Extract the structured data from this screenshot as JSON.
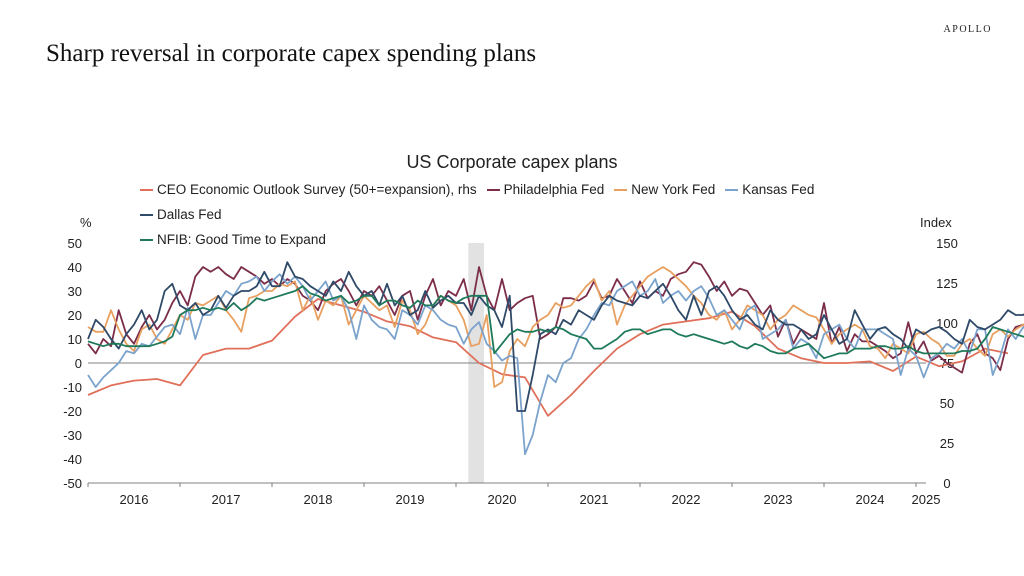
{
  "brand": "APOLLO",
  "page_title": "Sharp reversal in corporate capex spending plans",
  "chart_data": {
    "type": "line",
    "title": "US Corporate capex plans",
    "left_axis": {
      "label": "%",
      "ylim": [
        -50,
        50
      ],
      "ticks": [
        50,
        40,
        30,
        20,
        10,
        0,
        -10,
        -20,
        -30,
        -40,
        -50
      ]
    },
    "right_axis": {
      "label": "Index",
      "ylim": [
        0,
        150
      ],
      "ticks": [
        150,
        125,
        100,
        75,
        50,
        25,
        0
      ]
    },
    "x_axis": {
      "ticks": [
        "2016",
        "2017",
        "2018",
        "2019",
        "2020",
        "2021",
        "2022",
        "2023",
        "2024",
        "2025"
      ],
      "start": "2016-01",
      "end": "2025-03"
    },
    "recession_band": {
      "from": "2020-03",
      "to": "2020-04"
    },
    "zero_line": 0,
    "legend_placement": "top",
    "series": [
      {
        "name": "CEO Economic Outlook Survey (50+=expansion), rhs",
        "axis": "right",
        "color": "#E0705A",
        "frequency": "quarterly",
        "start": "2016-01",
        "values": [
          55,
          61,
          64,
          65,
          61,
          80,
          84,
          84,
          89,
          104,
          115,
          111,
          107,
          101,
          98,
          91,
          88,
          75,
          68,
          66,
          42,
          55,
          70,
          84,
          93,
          99,
          101,
          103,
          107,
          98,
          84,
          78,
          75,
          75,
          76,
          70,
          79,
          73,
          76,
          84,
          81
        ]
      },
      {
        "name": "Philadelphia Fed",
        "axis": "left",
        "color": "#7B2D4A",
        "frequency": "monthly",
        "start": "2016-01",
        "values": [
          8,
          4,
          10,
          7,
          22,
          12,
          8,
          15,
          20,
          14,
          18,
          25,
          30,
          24,
          36,
          40,
          38,
          40,
          37,
          35,
          40,
          38,
          36,
          33,
          35,
          32,
          35,
          33,
          28,
          26,
          22,
          30,
          33,
          35,
          30,
          24,
          30,
          28,
          32,
          26,
          20,
          28,
          30,
          18,
          28,
          35,
          24,
          30,
          28,
          35,
          22,
          40,
          28,
          22,
          35,
          22,
          25,
          27,
          28,
          10,
          12,
          15,
          27,
          27,
          26,
          28,
          34,
          27,
          28,
          35,
          30,
          25,
          34,
          27,
          30,
          28,
          35,
          37,
          38,
          42,
          41,
          36,
          30,
          34,
          28,
          31,
          30,
          25,
          20,
          24,
          11,
          18,
          8,
          14,
          12,
          10,
          25,
          8,
          15,
          5,
          12,
          9,
          9,
          7,
          5,
          2,
          4,
          17,
          4,
          9,
          1,
          3,
          0,
          -2,
          -4,
          8,
          12,
          4,
          2,
          -3,
          10,
          15,
          16,
          12,
          13,
          15,
          10,
          16,
          19,
          18,
          18,
          16,
          22,
          37,
          13,
          12,
          2
        ]
      },
      {
        "name": "New York Fed",
        "axis": "left",
        "color": "#E8A060",
        "frequency": "monthly",
        "start": "2016-01",
        "values": [
          15,
          13,
          13,
          22,
          14,
          8,
          5,
          14,
          16,
          10,
          8,
          14,
          20,
          18,
          25,
          24,
          26,
          28,
          22,
          18,
          13,
          27,
          28,
          30,
          30,
          33,
          32,
          34,
          22,
          28,
          18,
          26,
          24,
          28,
          16,
          22,
          28,
          25,
          22,
          24,
          15,
          26,
          22,
          12,
          16,
          24,
          28,
          26,
          24,
          18,
          7,
          8,
          20,
          -10,
          -8,
          5,
          10,
          7,
          15,
          18,
          20,
          25,
          23,
          24,
          28,
          32,
          35,
          26,
          30,
          16,
          24,
          28,
          32,
          36,
          38,
          40,
          38,
          35,
          32,
          28,
          25,
          20,
          18,
          22,
          14,
          18,
          24,
          22,
          20,
          14,
          18,
          20,
          24,
          22,
          20,
          19,
          14,
          8,
          12,
          14,
          16,
          14,
          7,
          6,
          2,
          8,
          6,
          4,
          12,
          13,
          10,
          8,
          3,
          3,
          8,
          10,
          6,
          3,
          12,
          14,
          11,
          14,
          16,
          10,
          18,
          16,
          14,
          15,
          12,
          9,
          8
        ]
      },
      {
        "name": "Kansas Fed",
        "axis": "left",
        "color": "#7BA3CC",
        "frequency": "monthly",
        "start": "2016-01",
        "values": [
          -5,
          -10,
          -6,
          -3,
          0,
          5,
          4,
          8,
          7,
          11,
          15,
          16,
          12,
          23,
          10,
          20,
          20,
          25,
          30,
          28,
          33,
          34,
          36,
          30,
          34,
          37,
          33,
          36,
          32,
          26,
          30,
          34,
          26,
          28,
          22,
          10,
          24,
          18,
          15,
          14,
          10,
          22,
          20,
          16,
          24,
          22,
          18,
          16,
          15,
          8,
          14,
          17,
          8,
          5,
          1,
          3,
          2,
          -38,
          -30,
          -16,
          -5,
          -8,
          0,
          2,
          10,
          14,
          20,
          25,
          24,
          30,
          32,
          34,
          28,
          30,
          35,
          25,
          28,
          30,
          26,
          30,
          32,
          27,
          20,
          22,
          18,
          14,
          22,
          24,
          10,
          12,
          14,
          18,
          6,
          10,
          8,
          2,
          12,
          14,
          16,
          10,
          6,
          14,
          14,
          14,
          12,
          10,
          -5,
          6,
          3,
          -6,
          2,
          4,
          8,
          6,
          10,
          4,
          14,
          14,
          -5,
          3,
          14,
          10,
          15,
          12,
          20,
          13,
          14,
          10,
          12,
          -10
        ]
      },
      {
        "name": "Dallas Fed",
        "axis": "left",
        "color": "#2F4A68",
        "frequency": "monthly",
        "start": "2016-01",
        "values": [
          10,
          18,
          15,
          10,
          6,
          12,
          16,
          22,
          14,
          18,
          30,
          33,
          24,
          22,
          25,
          20,
          22,
          28,
          23,
          28,
          30,
          30,
          32,
          38,
          32,
          32,
          42,
          36,
          35,
          32,
          30,
          28,
          34,
          30,
          38,
          32,
          28,
          30,
          24,
          33,
          24,
          28,
          20,
          22,
          30,
          23,
          26,
          28,
          25,
          25,
          20,
          28,
          24,
          22,
          15,
          28,
          -20,
          -20,
          -5,
          12,
          14,
          12,
          18,
          16,
          22,
          20,
          18,
          24,
          28,
          26,
          25,
          24,
          28,
          27,
          30,
          33,
          28,
          22,
          18,
          28,
          20,
          30,
          32,
          28,
          22,
          18,
          20,
          16,
          14,
          22,
          18,
          16,
          16,
          14,
          10,
          12,
          20,
          14,
          8,
          10,
          22,
          16,
          10,
          14,
          15,
          12,
          10,
          6,
          14,
          12,
          14,
          15,
          13,
          10,
          8,
          18,
          15,
          14,
          16,
          18,
          22,
          20,
          20,
          23,
          24,
          20,
          20,
          22,
          28,
          20,
          14,
          13
        ]
      },
      {
        "name": "NFIB: Good Time to Expand",
        "axis": "left",
        "color": "#1F7A5A",
        "frequency": "monthly",
        "start": "2016-01",
        "values": [
          9,
          8,
          7,
          8,
          8,
          7,
          7,
          7,
          7,
          8,
          9,
          11,
          20,
          22,
          22,
          23,
          22,
          23,
          22,
          25,
          22,
          24,
          27,
          26,
          27,
          28,
          29,
          30,
          32,
          29,
          28,
          26,
          27,
          28,
          25,
          26,
          28,
          28,
          24,
          26,
          26,
          24,
          23,
          26,
          24,
          24,
          28,
          26,
          25,
          27,
          28,
          28,
          28,
          4,
          8,
          12,
          14,
          13,
          13,
          14,
          13,
          15,
          14,
          12,
          11,
          10,
          6,
          6,
          8,
          10,
          13,
          14,
          14,
          12,
          13,
          14,
          14,
          12,
          11,
          12,
          11,
          10,
          9,
          8,
          9,
          7,
          6,
          8,
          7,
          5,
          4,
          4,
          6,
          7,
          8,
          5,
          2,
          3,
          4,
          4,
          6,
          6,
          6,
          7,
          7,
          6,
          6,
          7,
          5,
          4,
          4,
          4,
          4,
          4,
          5,
          5,
          6,
          10,
          15,
          14,
          13,
          12,
          11,
          10
        ]
      }
    ]
  }
}
